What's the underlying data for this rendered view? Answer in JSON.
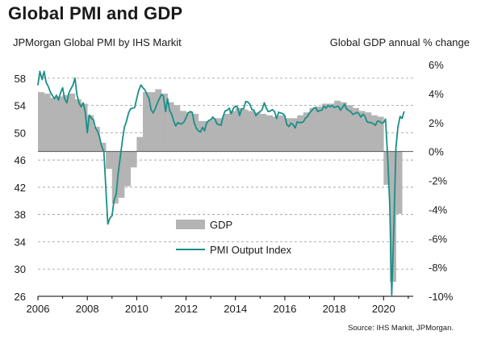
{
  "title": "Global PMI and GDP",
  "subtitle_left": "JPMorgan Global PMI by IHS Markit",
  "subtitle_right": "Global GDP annual % change",
  "source": "Source: IHS Markit, JPMorgan.",
  "colors": {
    "gdp_bar": "#b4b4b4",
    "pmi_line": "#1a8f87",
    "grid": "#9a9a9a",
    "axis": "#000000"
  },
  "chart_data": {
    "type": "bar",
    "x_axis": {
      "range": [
        2006,
        2021.2
      ],
      "ticks": [
        "2006",
        "2008",
        "2010",
        "2012",
        "2014",
        "2016",
        "2018",
        "2020"
      ]
    },
    "y_left": {
      "range": [
        26,
        60
      ],
      "ticks": [
        "26",
        "30",
        "34",
        "38",
        "42",
        "46",
        "50",
        "54",
        "58"
      ]
    },
    "y_right": {
      "range": [
        -10,
        6
      ],
      "ticks": [
        "-10%",
        "-8%",
        "-6%",
        "-4%",
        "-2%",
        "0%",
        "2%",
        "4%",
        "6%"
      ]
    },
    "grid": "horizontal dashed",
    "legend_position": "center-bottom",
    "series": [
      {
        "name": "GDP",
        "kind": "bar",
        "axis": "right",
        "x": [
          2006.0,
          2006.25,
          2006.5,
          2006.75,
          2007.0,
          2007.25,
          2007.5,
          2007.75,
          2008.0,
          2008.25,
          2008.5,
          2008.75,
          2009.0,
          2009.25,
          2009.5,
          2009.75,
          2010.0,
          2010.25,
          2010.5,
          2010.75,
          2011.0,
          2011.25,
          2011.5,
          2011.75,
          2012.0,
          2012.25,
          2012.5,
          2012.75,
          2013.0,
          2013.25,
          2013.5,
          2013.75,
          2014.0,
          2014.25,
          2014.5,
          2014.75,
          2015.0,
          2015.25,
          2015.5,
          2015.75,
          2016.0,
          2016.25,
          2016.5,
          2016.75,
          2017.0,
          2017.25,
          2017.5,
          2017.75,
          2018.0,
          2018.25,
          2018.5,
          2018.75,
          2019.0,
          2019.25,
          2019.5,
          2019.75,
          2020.0,
          2020.25,
          2020.5
        ],
        "values": [
          4.1,
          4.0,
          3.7,
          3.8,
          3.9,
          4.0,
          3.6,
          3.3,
          2.5,
          1.7,
          0.6,
          -1.2,
          -3.6,
          -3.2,
          -2.4,
          -1.1,
          1.0,
          4.1,
          4.1,
          4.3,
          4.0,
          3.4,
          3.2,
          2.8,
          2.7,
          2.6,
          2.1,
          2.1,
          2.3,
          2.3,
          2.6,
          2.8,
          3.0,
          2.9,
          2.8,
          2.7,
          2.6,
          2.5,
          2.4,
          2.5,
          2.3,
          2.3,
          2.5,
          2.7,
          3.0,
          3.1,
          3.3,
          3.3,
          3.5,
          3.4,
          3.2,
          3.0,
          2.8,
          2.7,
          2.5,
          2.4,
          -2.3,
          -9.0,
          -4.3
        ]
      },
      {
        "name": "PMI Output Index",
        "kind": "line",
        "axis": "left",
        "x": [
          2006.0,
          2006.08,
          2006.17,
          2006.25,
          2006.33,
          2006.42,
          2006.5,
          2006.58,
          2006.67,
          2006.75,
          2006.83,
          2006.92,
          2007.0,
          2007.08,
          2007.17,
          2007.25,
          2007.33,
          2007.42,
          2007.5,
          2007.58,
          2007.67,
          2007.75,
          2007.83,
          2007.92,
          2008.0,
          2008.08,
          2008.17,
          2008.25,
          2008.33,
          2008.42,
          2008.5,
          2008.58,
          2008.67,
          2008.75,
          2008.83,
          2008.92,
          2009.0,
          2009.08,
          2009.17,
          2009.25,
          2009.33,
          2009.42,
          2009.5,
          2009.58,
          2009.67,
          2009.75,
          2009.83,
          2009.92,
          2010.0,
          2010.08,
          2010.17,
          2010.25,
          2010.33,
          2010.42,
          2010.5,
          2010.58,
          2010.67,
          2010.75,
          2010.83,
          2010.92,
          2011.0,
          2011.08,
          2011.17,
          2011.25,
          2011.33,
          2011.42,
          2011.5,
          2011.58,
          2011.67,
          2011.75,
          2011.83,
          2011.92,
          2012.0,
          2012.08,
          2012.17,
          2012.25,
          2012.33,
          2012.42,
          2012.5,
          2012.58,
          2012.67,
          2012.75,
          2012.83,
          2012.92,
          2013.0,
          2013.08,
          2013.17,
          2013.25,
          2013.33,
          2013.42,
          2013.5,
          2013.58,
          2013.67,
          2013.75,
          2013.83,
          2013.92,
          2014.0,
          2014.08,
          2014.17,
          2014.25,
          2014.33,
          2014.42,
          2014.5,
          2014.58,
          2014.67,
          2014.75,
          2014.83,
          2014.92,
          2015.0,
          2015.08,
          2015.17,
          2015.25,
          2015.33,
          2015.42,
          2015.5,
          2015.58,
          2015.67,
          2015.75,
          2015.83,
          2015.92,
          2016.0,
          2016.08,
          2016.17,
          2016.25,
          2016.33,
          2016.42,
          2016.5,
          2016.58,
          2016.67,
          2016.75,
          2016.83,
          2016.92,
          2017.0,
          2017.08,
          2017.17,
          2017.25,
          2017.33,
          2017.42,
          2017.5,
          2017.58,
          2017.67,
          2017.75,
          2017.83,
          2017.92,
          2018.0,
          2018.08,
          2018.17,
          2018.25,
          2018.33,
          2018.42,
          2018.5,
          2018.58,
          2018.67,
          2018.75,
          2018.83,
          2018.92,
          2019.0,
          2019.08,
          2019.17,
          2019.25,
          2019.33,
          2019.42,
          2019.5,
          2019.58,
          2019.67,
          2019.75,
          2019.83,
          2019.92,
          2020.0,
          2020.08,
          2020.17,
          2020.25,
          2020.33,
          2020.42,
          2020.5,
          2020.58,
          2020.67,
          2020.75,
          2020.83
        ],
        "values": [
          57.0,
          59.0,
          57.8,
          59.0,
          57.4,
          56.8,
          56.0,
          55.5,
          55.0,
          55.5,
          54.8,
          55.9,
          56.6,
          55.0,
          54.4,
          55.8,
          56.4,
          57.0,
          58.0,
          55.6,
          54.3,
          53.8,
          54.4,
          53.0,
          50.0,
          52.6,
          52.1,
          51.9,
          50.7,
          50.2,
          49.3,
          48.0,
          47.2,
          42.0,
          36.6,
          37.5,
          37.8,
          40.0,
          41.0,
          44.0,
          46.3,
          48.8,
          50.8,
          51.6,
          52.9,
          53.5,
          53.6,
          53.7,
          55.0,
          56.2,
          57.0,
          56.6,
          56.3,
          55.6,
          55.0,
          53.4,
          52.9,
          53.5,
          54.3,
          55.0,
          55.6,
          55.4,
          53.1,
          55.0,
          53.3,
          52.7,
          51.7,
          51.0,
          51.5,
          51.3,
          51.3,
          51.6,
          52.2,
          52.9,
          53.1,
          53.0,
          51.5,
          50.6,
          50.3,
          50.1,
          50.8,
          50.3,
          51.4,
          51.8,
          51.9,
          52.3,
          52.0,
          51.3,
          51.2,
          51.1,
          52.4,
          53.2,
          53.3,
          53.6,
          52.8,
          53.6,
          53.9,
          53.8,
          52.5,
          53.5,
          53.5,
          54.6,
          54.5,
          54.2,
          53.4,
          53.3,
          52.5,
          52.9,
          53.1,
          53.4,
          54.4,
          53.6,
          53.1,
          53.2,
          53.4,
          53.1,
          52.1,
          53.0,
          52.9,
          52.8,
          52.5,
          51.2,
          50.9,
          51.4,
          51.2,
          50.7,
          51.6,
          51.5,
          51.5,
          51.6,
          52.1,
          52.4,
          52.9,
          53.2,
          53.6,
          53.7,
          53.1,
          53.3,
          53.3,
          53.9,
          53.6,
          54.0,
          53.8,
          54.0,
          53.7,
          53.8,
          53.9,
          53.3,
          53.7,
          54.2,
          53.5,
          53.3,
          53.1,
          52.7,
          52.8,
          53.0,
          52.8,
          52.3,
          52.7,
          52.4,
          51.6,
          51.5,
          51.5,
          51.3,
          51.1,
          51.7,
          51.7,
          51.4,
          51.5,
          52.0,
          46.1,
          39.4,
          26.2,
          36.3,
          47.8,
          50.8,
          52.4,
          52.1,
          53.1
        ]
      }
    ]
  }
}
